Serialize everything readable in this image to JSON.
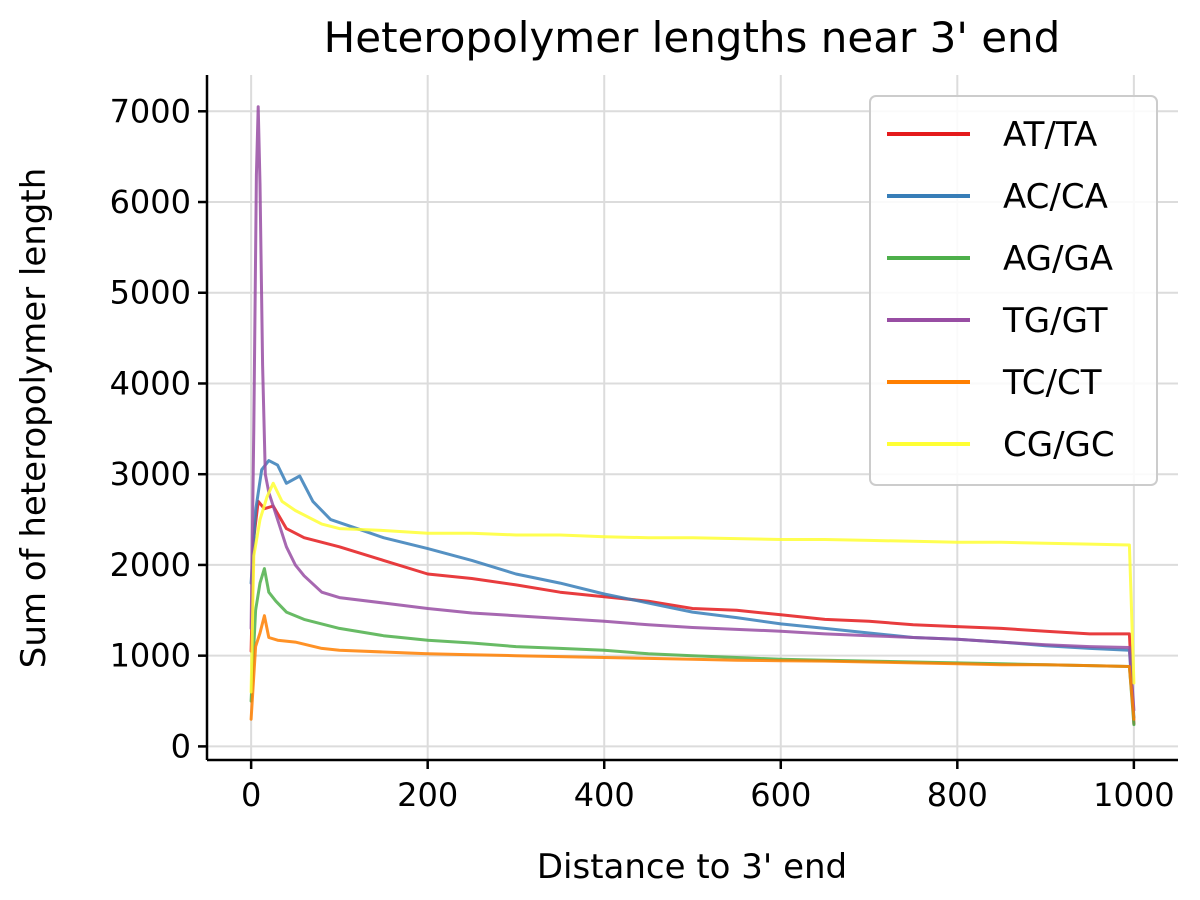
{
  "chart_data": {
    "type": "line",
    "title": "Heteropolymer lengths near 3' end",
    "xlabel": "Distance to 3' end",
    "ylabel": "Sum of heteropolymer length",
    "xlim": [
      -50,
      1050
    ],
    "ylim": [
      -150,
      7400
    ],
    "xticks": [
      0,
      200,
      400,
      600,
      800,
      1000
    ],
    "yticks": [
      0,
      1000,
      2000,
      3000,
      4000,
      5000,
      6000,
      7000
    ],
    "grid": true,
    "legend_position": "top-right",
    "series": [
      {
        "name": "AT/TA",
        "color": "#e41a1c",
        "points": [
          [
            0,
            1050
          ],
          [
            3,
            2300
          ],
          [
            8,
            2700
          ],
          [
            15,
            2620
          ],
          [
            25,
            2650
          ],
          [
            40,
            2400
          ],
          [
            60,
            2300
          ],
          [
            100,
            2200
          ],
          [
            150,
            2050
          ],
          [
            200,
            1900
          ],
          [
            250,
            1850
          ],
          [
            300,
            1780
          ],
          [
            350,
            1700
          ],
          [
            400,
            1650
          ],
          [
            450,
            1600
          ],
          [
            500,
            1520
          ],
          [
            550,
            1500
          ],
          [
            600,
            1450
          ],
          [
            650,
            1400
          ],
          [
            700,
            1380
          ],
          [
            750,
            1340
          ],
          [
            800,
            1320
          ],
          [
            850,
            1300
          ],
          [
            900,
            1270
          ],
          [
            950,
            1240
          ],
          [
            995,
            1240
          ],
          [
            1000,
            250
          ]
        ]
      },
      {
        "name": "AC/CA",
        "color": "#377eb8",
        "points": [
          [
            0,
            1800
          ],
          [
            5,
            2600
          ],
          [
            12,
            3050
          ],
          [
            20,
            3150
          ],
          [
            30,
            3100
          ],
          [
            40,
            2900
          ],
          [
            55,
            2980
          ],
          [
            70,
            2700
          ],
          [
            90,
            2500
          ],
          [
            120,
            2400
          ],
          [
            150,
            2300
          ],
          [
            200,
            2180
          ],
          [
            250,
            2050
          ],
          [
            300,
            1900
          ],
          [
            350,
            1800
          ],
          [
            400,
            1680
          ],
          [
            450,
            1580
          ],
          [
            500,
            1480
          ],
          [
            550,
            1420
          ],
          [
            600,
            1350
          ],
          [
            650,
            1300
          ],
          [
            700,
            1250
          ],
          [
            750,
            1200
          ],
          [
            800,
            1180
          ],
          [
            850,
            1150
          ],
          [
            900,
            1110
          ],
          [
            950,
            1080
          ],
          [
            995,
            1060
          ],
          [
            1000,
            320
          ]
        ]
      },
      {
        "name": "AG/GA",
        "color": "#4daf4a",
        "points": [
          [
            0,
            500
          ],
          [
            5,
            1500
          ],
          [
            10,
            1800
          ],
          [
            15,
            1960
          ],
          [
            20,
            1700
          ],
          [
            28,
            1600
          ],
          [
            40,
            1480
          ],
          [
            60,
            1400
          ],
          [
            100,
            1300
          ],
          [
            150,
            1220
          ],
          [
            200,
            1170
          ],
          [
            250,
            1140
          ],
          [
            300,
            1100
          ],
          [
            350,
            1080
          ],
          [
            400,
            1060
          ],
          [
            450,
            1020
          ],
          [
            500,
            1000
          ],
          [
            550,
            980
          ],
          [
            600,
            960
          ],
          [
            650,
            950
          ],
          [
            700,
            940
          ],
          [
            750,
            930
          ],
          [
            800,
            920
          ],
          [
            850,
            910
          ],
          [
            900,
            900
          ],
          [
            950,
            890
          ],
          [
            995,
            880
          ],
          [
            1000,
            240
          ]
        ]
      },
      {
        "name": "TG/GT",
        "color": "#984ea3",
        "points": [
          [
            0,
            1300
          ],
          [
            3,
            3500
          ],
          [
            6,
            6300
          ],
          [
            8,
            7050
          ],
          [
            10,
            6200
          ],
          [
            13,
            4200
          ],
          [
            16,
            3000
          ],
          [
            20,
            2800
          ],
          [
            30,
            2500
          ],
          [
            40,
            2200
          ],
          [
            50,
            2000
          ],
          [
            60,
            1880
          ],
          [
            80,
            1700
          ],
          [
            100,
            1640
          ],
          [
            150,
            1580
          ],
          [
            200,
            1520
          ],
          [
            250,
            1470
          ],
          [
            300,
            1440
          ],
          [
            350,
            1410
          ],
          [
            400,
            1380
          ],
          [
            450,
            1340
          ],
          [
            500,
            1310
          ],
          [
            550,
            1290
          ],
          [
            600,
            1270
          ],
          [
            650,
            1240
          ],
          [
            700,
            1220
          ],
          [
            750,
            1200
          ],
          [
            800,
            1180
          ],
          [
            850,
            1150
          ],
          [
            900,
            1120
          ],
          [
            950,
            1100
          ],
          [
            995,
            1090
          ],
          [
            1000,
            400
          ]
        ]
      },
      {
        "name": "TC/CT",
        "color": "#ff7f00",
        "points": [
          [
            0,
            300
          ],
          [
            5,
            1100
          ],
          [
            10,
            1250
          ],
          [
            15,
            1440
          ],
          [
            20,
            1200
          ],
          [
            30,
            1170
          ],
          [
            50,
            1150
          ],
          [
            80,
            1080
          ],
          [
            100,
            1060
          ],
          [
            150,
            1040
          ],
          [
            200,
            1020
          ],
          [
            250,
            1010
          ],
          [
            300,
            1000
          ],
          [
            350,
            990
          ],
          [
            400,
            980
          ],
          [
            450,
            970
          ],
          [
            500,
            960
          ],
          [
            550,
            950
          ],
          [
            600,
            945
          ],
          [
            650,
            940
          ],
          [
            700,
            930
          ],
          [
            750,
            920
          ],
          [
            800,
            910
          ],
          [
            850,
            900
          ],
          [
            900,
            900
          ],
          [
            950,
            890
          ],
          [
            995,
            880
          ],
          [
            1000,
            300
          ]
        ]
      },
      {
        "name": "CG/GC",
        "color": "#ffff33",
        "points": [
          [
            0,
            600
          ],
          [
            3,
            2100
          ],
          [
            10,
            2500
          ],
          [
            18,
            2750
          ],
          [
            25,
            2900
          ],
          [
            35,
            2700
          ],
          [
            50,
            2600
          ],
          [
            80,
            2450
          ],
          [
            100,
            2400
          ],
          [
            150,
            2380
          ],
          [
            200,
            2350
          ],
          [
            250,
            2350
          ],
          [
            300,
            2330
          ],
          [
            350,
            2330
          ],
          [
            400,
            2310
          ],
          [
            450,
            2300
          ],
          [
            500,
            2300
          ],
          [
            550,
            2290
          ],
          [
            600,
            2280
          ],
          [
            650,
            2280
          ],
          [
            700,
            2270
          ],
          [
            750,
            2260
          ],
          [
            800,
            2250
          ],
          [
            850,
            2250
          ],
          [
            900,
            2240
          ],
          [
            950,
            2230
          ],
          [
            995,
            2220
          ],
          [
            1000,
            700
          ]
        ]
      }
    ]
  }
}
